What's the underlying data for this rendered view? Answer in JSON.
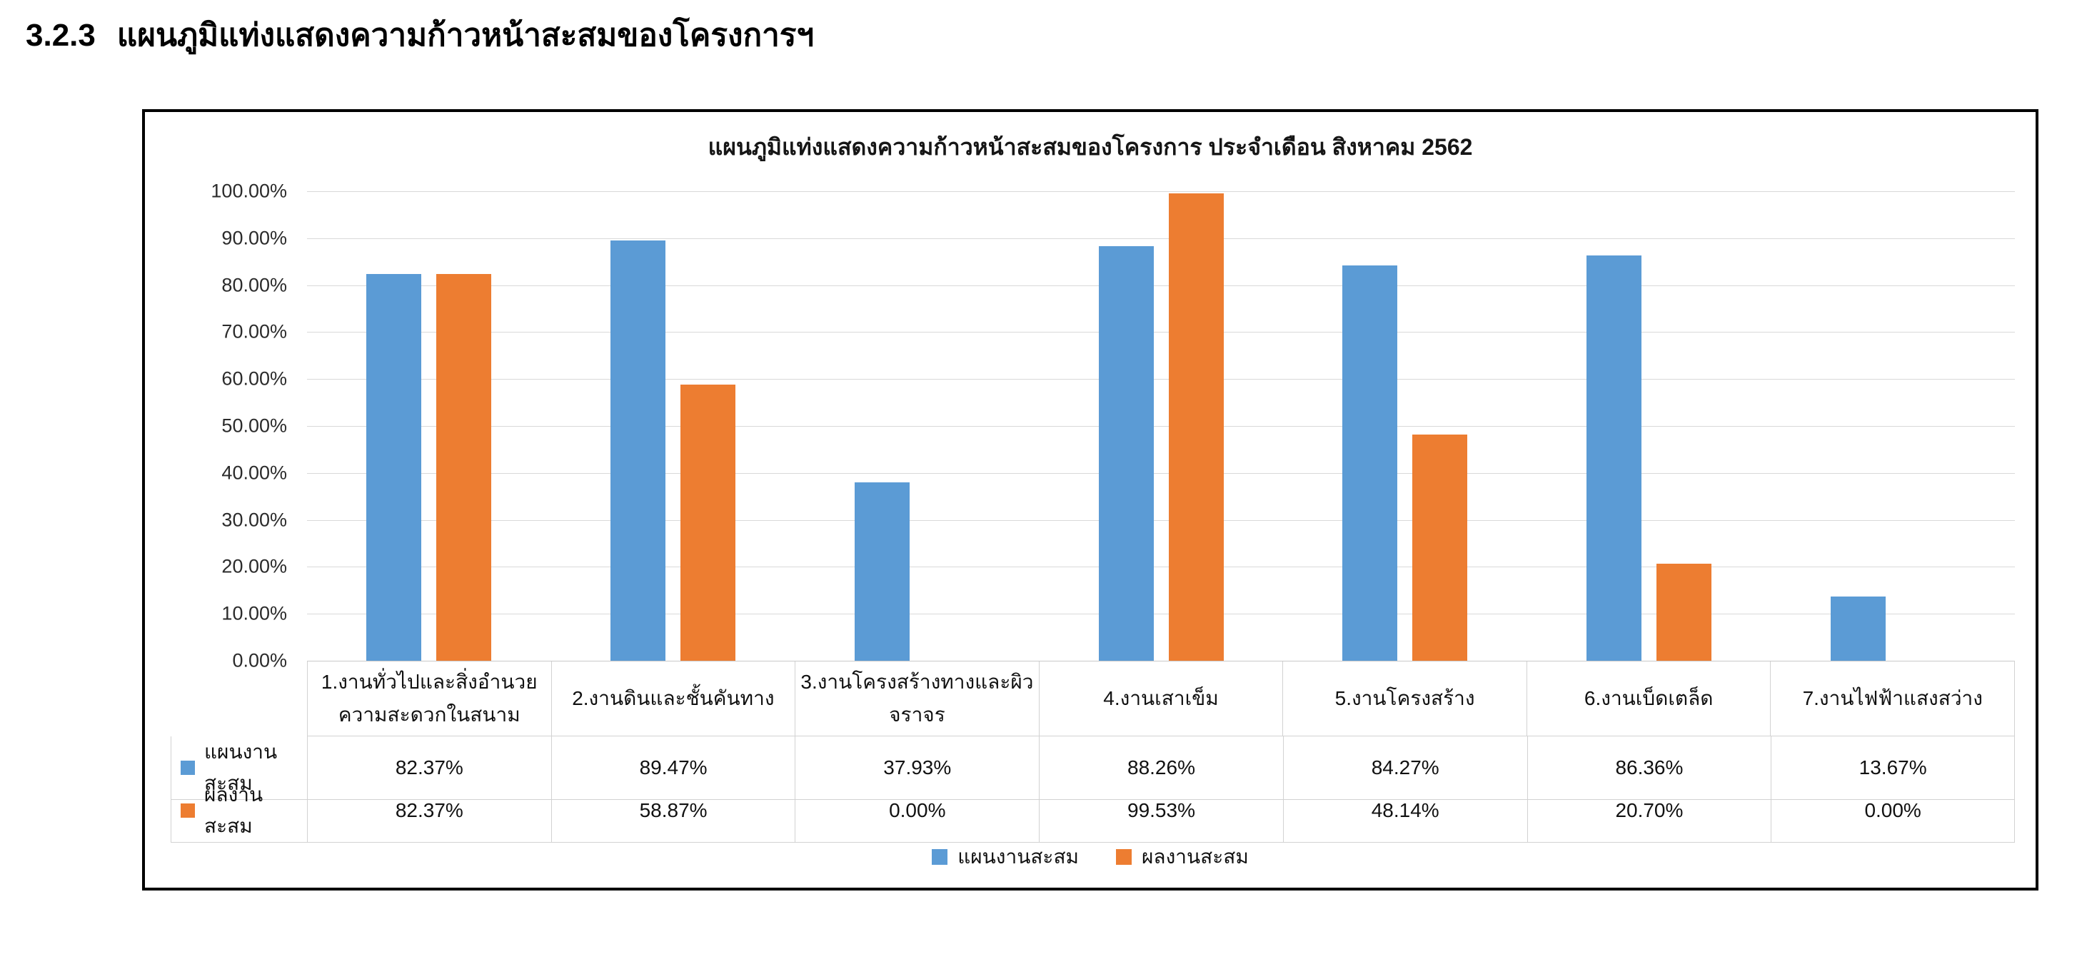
{
  "page": {
    "section_number": "3.2.3",
    "section_title": "แผนภูมิแท่งแสดงความก้าวหน้าสะสมของโครงการฯ"
  },
  "chart_data": {
    "type": "bar",
    "title": "แผนภูมิแท่งแสดงความก้าวหน้าสะสมของโครงการ ประจำเดือน สิงหาคม 2562",
    "categories": [
      "1.งานทั่วไปและสิ่งอำนวย\nความสะดวกในสนาม",
      "2.งานดินและชั้นคันทาง",
      "3.งานโครงสร้างทางและผิว\nจราจร",
      "4.งานเสาเข็ม",
      "5.งานโครงสร้าง",
      "6.งานเบ็ดเตล็ด",
      "7.งานไฟฟ้าแสงสว่าง"
    ],
    "series": [
      {
        "name": "แผนงานสะสม",
        "color": "#5B9BD5",
        "values": [
          82.37,
          89.47,
          37.93,
          88.26,
          84.27,
          86.36,
          13.67
        ],
        "labels": [
          "82.37%",
          "89.47%",
          "37.93%",
          "88.26%",
          "84.27%",
          "86.36%",
          "13.67%"
        ]
      },
      {
        "name": "ผลงานสะสม",
        "color": "#ED7D31",
        "values": [
          82.37,
          58.87,
          0,
          99.53,
          48.14,
          20.7,
          0
        ],
        "labels": [
          "82.37%",
          "58.87%",
          "0.00%",
          "99.53%",
          "48.14%",
          "20.70%",
          "0.00%"
        ]
      }
    ],
    "xlabel": "",
    "ylabel": "",
    "ylim": [
      0,
      100
    ],
    "yticks": [
      "100.00%",
      "90.00%",
      "80.00%",
      "70.00%",
      "60.00%",
      "50.00%",
      "40.00%",
      "30.00%",
      "20.00%",
      "10.00%",
      "0.00%"
    ],
    "grid": true,
    "legend_position": "bottom",
    "data_table": true
  }
}
